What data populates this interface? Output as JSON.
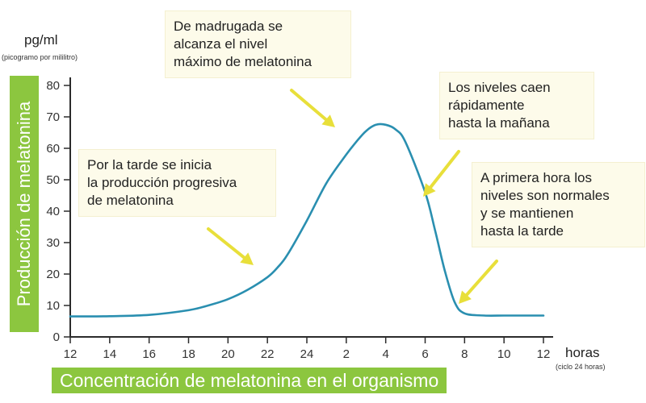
{
  "chart_data": {
    "type": "line",
    "title": "Concentración de melatonina en el organismo",
    "ylabel": "Producción de melatonina",
    "yunit": "pg/ml",
    "yunit_note": "(picogramo por mililitro)",
    "xunit": "horas",
    "xunit_note": "(ciclo 24 horas)",
    "ylim": [
      0,
      80
    ],
    "yticks": [
      0,
      10,
      20,
      30,
      40,
      50,
      60,
      70,
      80
    ],
    "xticks": [
      "12",
      "14",
      "16",
      "18",
      "20",
      "22",
      "24",
      "2",
      "4",
      "6",
      "8",
      "10",
      "12"
    ],
    "series": [
      {
        "x": [
          0,
          2,
          4,
          6,
          7,
          8,
          9,
          10,
          10.5,
          11,
          12,
          13,
          14,
          14.5,
          15,
          15.5,
          16,
          16.5,
          17,
          18,
          18.5,
          19,
          19.5,
          20,
          21,
          22,
          23,
          24
        ],
        "y": [
          6.5,
          6.6,
          7,
          8.5,
          10,
          12,
          15,
          19,
          22,
          26,
          37,
          49,
          58,
          62,
          65.5,
          67.5,
          67.5,
          66,
          62,
          46,
          34,
          21,
          11,
          7.5,
          6.8,
          6.8,
          6.8,
          6.8
        ]
      }
    ],
    "color": "#2a8fb0",
    "grid": false
  },
  "annotations": [
    {
      "text": "De madrugada se\nalcanza el nivel\nmáximo de melatonina"
    },
    {
      "text": "Los niveles caen\nrápidamente\nhasta la mañana"
    },
    {
      "text": "Por la tarde se inicia\nla producción progresiva\nde melatonina"
    },
    {
      "text": "A primera hora los\nniveles son normales\ny se mantienen\nhasta la tarde"
    }
  ],
  "colors": {
    "accent_green": "#8cc63f",
    "arrow_yellow": "#e8df3a",
    "annotation_bg": "#fdfbea"
  }
}
